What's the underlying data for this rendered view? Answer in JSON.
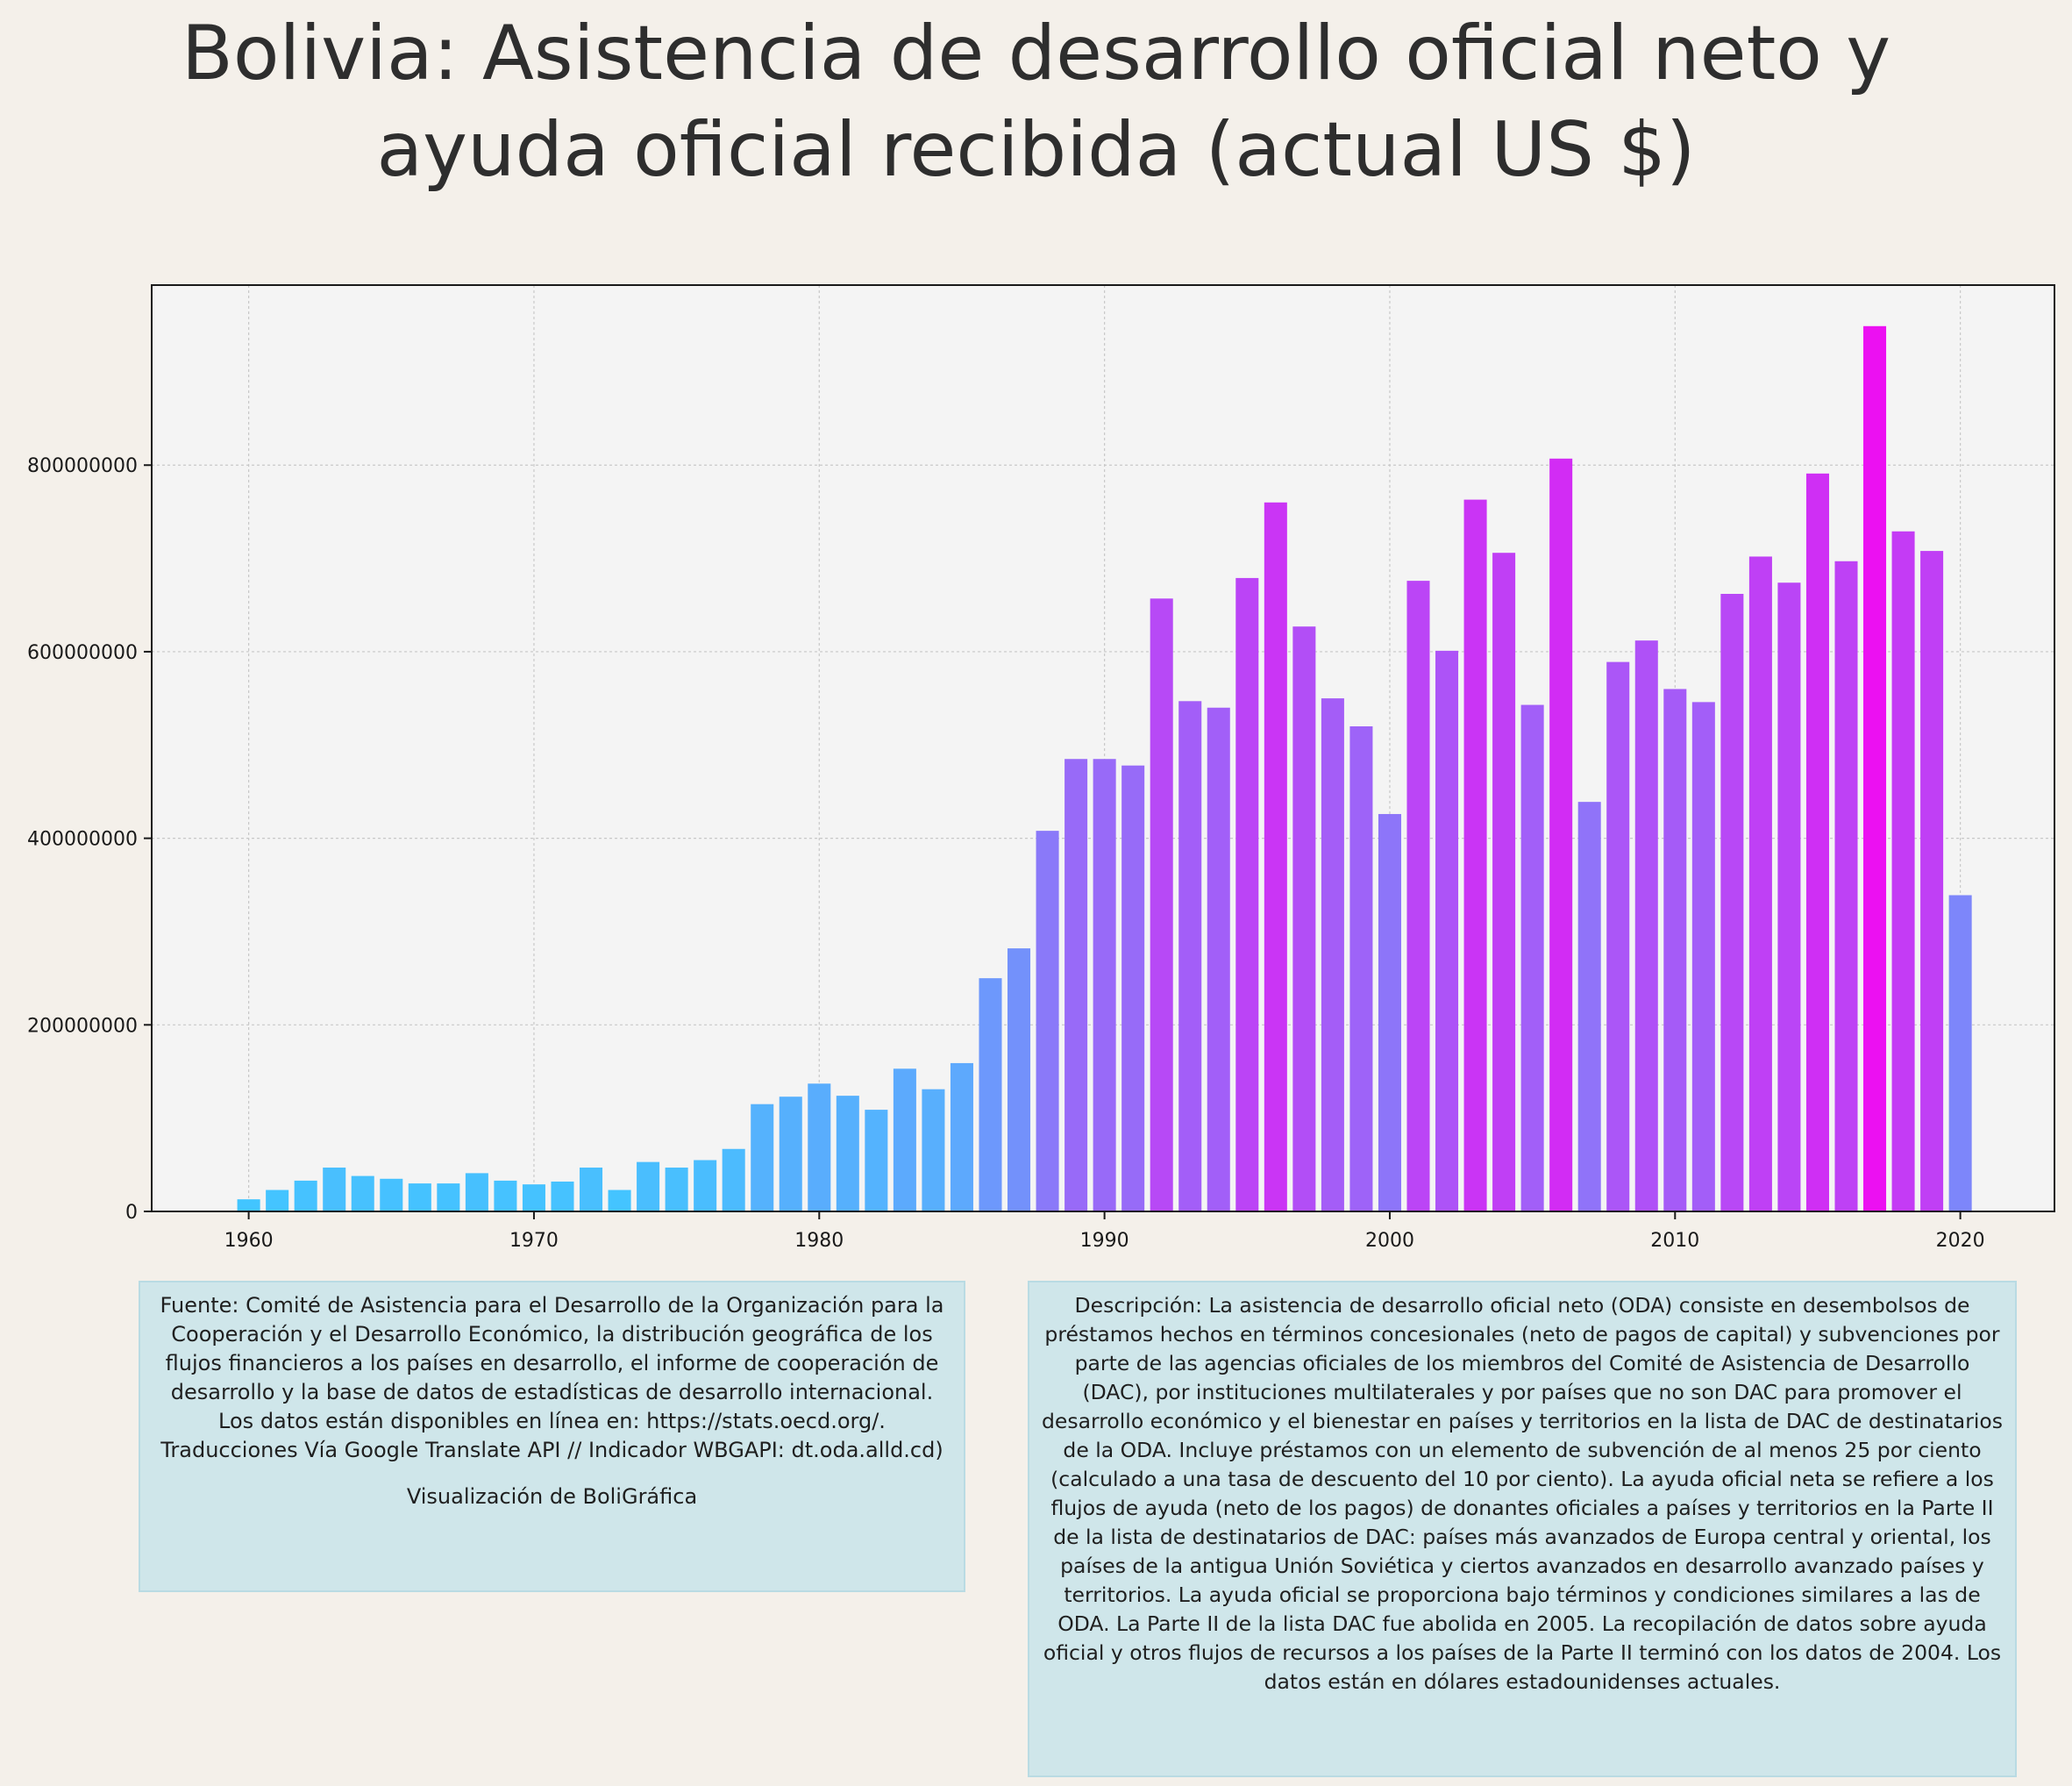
{
  "title_lines": [
    "Bolivia:  Asistencia de desarrollo oficial neto y",
    "ayuda oficial recibida (actual US $)"
  ],
  "source": {
    "text": "Fuente: Comité de Asistencia para el Desarrollo de la Organización para la Cooperación y el Desarrollo Económico, la distribución geográfica de los flujos financieros a los países en desarrollo, el informe de cooperación de desarrollo y la base de datos de estadísticas de desarrollo internacional. Los datos están disponibles en línea en: https://stats.oecd.org/. Traducciones Vía Google Translate API // Indicador WBGAPI: dt.oda.alld.cd)",
    "credit": "Visualización de BoliGráfica"
  },
  "description": {
    "text": "Descripción: La asistencia de desarrollo oficial neto (ODA) consiste en desembolsos de préstamos hechos en términos concesionales (neto de pagos de capital) y subvenciones por parte de las agencias oficiales de los miembros del Comité de Asistencia de Desarrollo (DAC), por instituciones multilaterales y por países que no son DAC para promover el desarrollo económico y el bienestar en países y territorios en la lista de DAC de destinatarios de la ODA. Incluye préstamos con un elemento de subvención de al menos 25 por ciento (calculado a una tasa de descuento del 10 por ciento). La ayuda oficial neta se refiere a los flujos de ayuda (neto de los pagos) de donantes oficiales a países y territorios en la Parte II de la lista de destinatarios de DAC: países más avanzados de Europa central y oriental, los países de la antigua Unión Soviética y ciertos avanzados en desarrollo avanzado países y territorios. La ayuda oficial se proporciona bajo términos y condiciones similares a las de ODA. La Parte II de la lista DAC fue abolida en 2005. La recopilación de datos sobre ayuda oficial y otros flujos de recursos a los países de la Parte II terminó con los datos de 2004. Los datos están en dólares estadounidenses actuales."
  },
  "chart_data": {
    "type": "bar",
    "title": "Bolivia:  Asistencia de desarrollo oficial neto y ayuda oficial recibida (actual US $)",
    "xlabel": "",
    "ylabel": "",
    "x": [
      1960,
      1961,
      1962,
      1963,
      1964,
      1965,
      1966,
      1967,
      1968,
      1969,
      1970,
      1971,
      1972,
      1973,
      1974,
      1975,
      1976,
      1977,
      1978,
      1979,
      1980,
      1981,
      1982,
      1983,
      1984,
      1985,
      1986,
      1987,
      1988,
      1989,
      1990,
      1991,
      1992,
      1993,
      1994,
      1995,
      1996,
      1997,
      1998,
      1999,
      2000,
      2001,
      2002,
      2003,
      2004,
      2005,
      2006,
      2007,
      2008,
      2009,
      2010,
      2011,
      2012,
      2013,
      2014,
      2015,
      2016,
      2017,
      2018,
      2019,
      2020
    ],
    "values": [
      13000000,
      23000000,
      33000000,
      47000000,
      38000000,
      35000000,
      30000000,
      30000000,
      41000000,
      33000000,
      29000000,
      32000000,
      47000000,
      23000000,
      53000000,
      47000000,
      55000000,
      67000000,
      115000000,
      123000000,
      137000000,
      124000000,
      109000000,
      153000000,
      131000000,
      159000000,
      250000000,
      282000000,
      408000000,
      485000000,
      485000000,
      478000000,
      657000000,
      547000000,
      540000000,
      679000000,
      760000000,
      627000000,
      550000000,
      520000000,
      426000000,
      676000000,
      601000000,
      763000000,
      706000000,
      543000000,
      807000000,
      439000000,
      589000000,
      612000000,
      560000000,
      546000000,
      662000000,
      702000000,
      674000000,
      791000000,
      697000000,
      949000000,
      729000000,
      708000000,
      339000000
    ],
    "xlim": [
      1956.6,
      2023.3
    ],
    "ylim": [
      0,
      993000000
    ],
    "x_ticks": [
      "1960",
      "1970",
      "1980",
      "1990",
      "2000",
      "2010",
      "2020"
    ],
    "y_ticks": [
      "0",
      "200000000",
      "400000000",
      "600000000",
      "800000000"
    ],
    "grid": true,
    "colormap": [
      "#40c8ff",
      "#ec10f2"
    ]
  }
}
